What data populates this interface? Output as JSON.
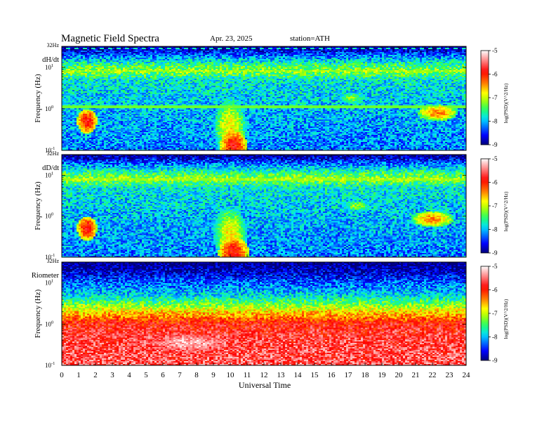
{
  "header": {
    "title": "Magnetic  Field  Spectra",
    "date": "Apr. 23, 2025",
    "station": "station=ATH"
  },
  "colors": {
    "colormap": [
      "#00007a",
      "#0000ff",
      "#0080ff",
      "#00e0ff",
      "#22ff66",
      "#b0ff00",
      "#ffff00",
      "#ff8000",
      "#ff0000",
      "#ffffff"
    ],
    "colormap_stops": [
      -9,
      -8.6,
      -8.2,
      -7.9,
      -7.5,
      -7.1,
      -6.8,
      -6.4,
      -5.9,
      -5
    ]
  },
  "chart_data": [
    {
      "type": "heatmap",
      "panel_label": "dH/dt",
      "top_label": "32Hz",
      "ylabel": "Frequency  (Hz)",
      "yscale": "log",
      "ylim": [
        0.1,
        32
      ],
      "yticks": [
        {
          "base": "10",
          "exp": "-1",
          "value": 0.1
        },
        {
          "base": "10",
          "exp": "0",
          "value": 1
        },
        {
          "base": "10",
          "exp": "1",
          "value": 10
        }
      ],
      "xlim": [
        0,
        24
      ],
      "colorbar": {
        "label": "log(PSD)(V^2/Hz)",
        "ticks": [
          "-5",
          "-6",
          "-7",
          "-8",
          "-9"
        ],
        "range": [
          -9,
          -5
        ]
      },
      "background_levels": [
        [
          0.1,
          -8.2
        ],
        [
          1,
          -8.0
        ],
        [
          5,
          -7.8
        ],
        [
          8,
          -7.2
        ],
        [
          10,
          -7.4
        ],
        [
          20,
          -8.3
        ],
        [
          32,
          -9.0
        ]
      ],
      "lines": [
        {
          "freq": 29,
          "level": -7.7,
          "style": "dotted"
        },
        {
          "freq": 8.2,
          "level": -7.2
        },
        {
          "freq": 1.1,
          "level": -7.3
        }
      ],
      "blobs": [
        {
          "t": 1.5,
          "f": 0.5,
          "dt": 0.6,
          "df": 0.3,
          "level": -5.9
        },
        {
          "t": 10.2,
          "f": 0.13,
          "dt": 0.8,
          "df": 0.4,
          "level": -5.9
        },
        {
          "t": 10.0,
          "f": 0.35,
          "dt": 1.0,
          "df": 0.7,
          "level": -6.8
        },
        {
          "t": 17.2,
          "f": 1.8,
          "dt": 0.8,
          "df": 0.15,
          "level": -7.2
        },
        {
          "t": 22.3,
          "f": 0.8,
          "dt": 1.2,
          "df": 0.2,
          "level": -6.4
        }
      ]
    },
    {
      "type": "heatmap",
      "panel_label": "dD/dt",
      "top_label": "32Hz",
      "ylabel": "Frequency  (Hz)",
      "yscale": "log",
      "ylim": [
        0.1,
        32
      ],
      "yticks": [
        {
          "base": "10",
          "exp": "-1",
          "value": 0.1
        },
        {
          "base": "10",
          "exp": "0",
          "value": 1
        },
        {
          "base": "10",
          "exp": "1",
          "value": 10
        }
      ],
      "xlim": [
        0,
        24
      ],
      "colorbar": {
        "label": "log(PSD)(V^2/Hz)",
        "ticks": [
          "-5",
          "-6",
          "-7",
          "-8",
          "-9"
        ],
        "range": [
          -9,
          -5
        ]
      },
      "background_levels": [
        [
          0.1,
          -8.2
        ],
        [
          1,
          -8.0
        ],
        [
          5,
          -7.8
        ],
        [
          8,
          -7.2
        ],
        [
          10,
          -7.4
        ],
        [
          20,
          -8.3
        ],
        [
          32,
          -9.0
        ]
      ],
      "lines": [
        {
          "freq": 8.0,
          "level": -7.2
        }
      ],
      "blobs": [
        {
          "t": 1.5,
          "f": 0.5,
          "dt": 0.6,
          "df": 0.3,
          "level": -5.9
        },
        {
          "t": 10.2,
          "f": 0.13,
          "dt": 0.9,
          "df": 0.4,
          "level": -5.9
        },
        {
          "t": 10.0,
          "f": 0.35,
          "dt": 1.0,
          "df": 0.7,
          "level": -6.8
        },
        {
          "t": 17.5,
          "f": 1.8,
          "dt": 1.0,
          "df": 0.15,
          "level": -7.2
        },
        {
          "t": 22.0,
          "f": 0.85,
          "dt": 1.3,
          "df": 0.2,
          "level": -6.4
        }
      ]
    },
    {
      "type": "heatmap",
      "panel_label": "Riometer",
      "top_label": "32Hz",
      "ylabel": "Frequency  (Hz)",
      "yscale": "log",
      "ylim": [
        0.1,
        32
      ],
      "yticks": [
        {
          "base": "10",
          "exp": "-1",
          "value": 0.1
        },
        {
          "base": "10",
          "exp": "0",
          "value": 1
        },
        {
          "base": "10",
          "exp": "1",
          "value": 10
        }
      ],
      "xlim": [
        0,
        24
      ],
      "colorbar": {
        "label": "log(PSD)(V^2/Hz)",
        "ticks": [
          "-5",
          "-6",
          "-7",
          "-8",
          "-9"
        ],
        "range": [
          -9,
          -5
        ]
      },
      "background_levels": [
        [
          0.1,
          -5.6
        ],
        [
          0.5,
          -5.7
        ],
        [
          1,
          -5.9
        ],
        [
          2,
          -6.7
        ],
        [
          3,
          -7.3
        ],
        [
          5,
          -7.9
        ],
        [
          10,
          -8.3
        ],
        [
          20,
          -8.8
        ],
        [
          32,
          -9.0
        ]
      ],
      "lines": [],
      "blobs": [
        {
          "t": 7.5,
          "f": 0.35,
          "dt": 3.0,
          "df": 0.3,
          "level": -5.2
        }
      ]
    }
  ],
  "xaxis": {
    "label": "Universal Time",
    "ticks": [
      "0",
      "1",
      "2",
      "3",
      "4",
      "5",
      "6",
      "7",
      "8",
      "9",
      "10",
      "11",
      "12",
      "13",
      "14",
      "15",
      "16",
      "17",
      "18",
      "19",
      "20",
      "21",
      "22",
      "23",
      "24"
    ]
  }
}
